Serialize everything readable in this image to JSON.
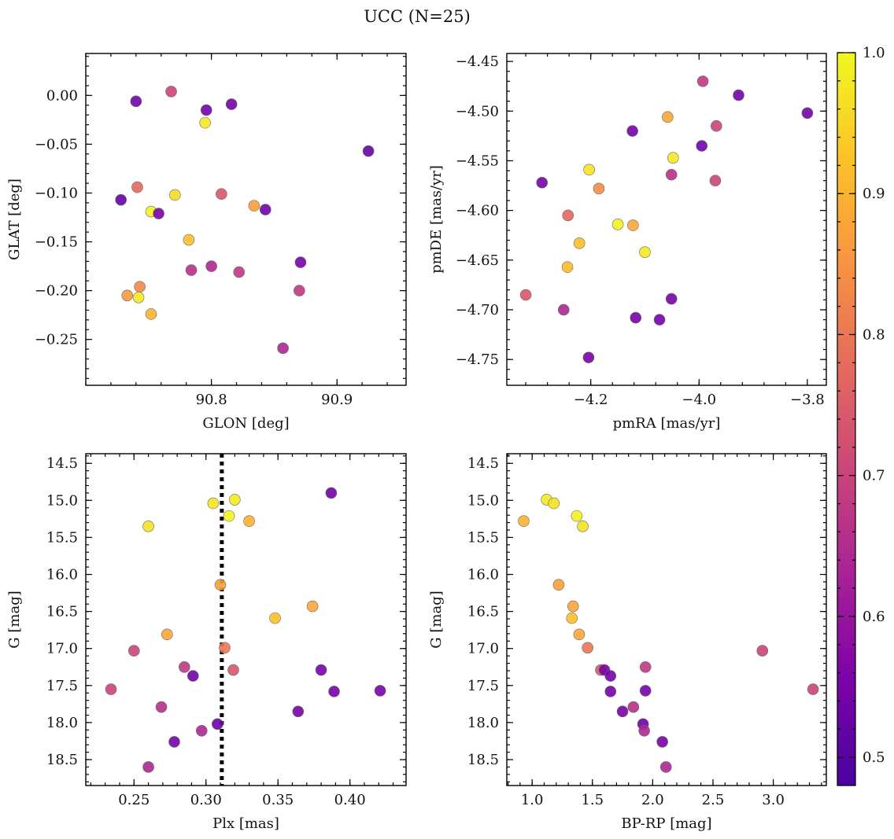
{
  "title": "UCC (N=25)",
  "colorbar": {
    "min": 0.48,
    "max": 1.0,
    "ticks": [
      0.5,
      0.6,
      0.7,
      0.8,
      0.9,
      1.0
    ],
    "tick_labels": [
      "0.5",
      "0.6",
      "0.7",
      "0.8",
      "0.9",
      "1.0"
    ],
    "colormap": "plasma"
  },
  "chart_data": [
    {
      "type": "scatter",
      "xlabel": "GLON [deg]",
      "ylabel": "GLAT [deg]",
      "xlim": [
        90.7,
        90.955
      ],
      "ylim": [
        -0.297,
        0.043
      ],
      "xticks": [
        90.8,
        90.9
      ],
      "xtick_labels": [
        "90.8",
        "90.9"
      ],
      "yticks": [
        0.0,
        -0.05,
        -0.1,
        -0.15,
        -0.2,
        -0.25
      ],
      "ytick_labels": [
        "0.00",
        "−0.05",
        "−0.10",
        "−0.15",
        "−0.20",
        "−0.25"
      ],
      "points": [
        {
          "x": 90.768,
          "y": 0.004,
          "c": 0.7
        },
        {
          "x": 90.74,
          "y": -0.006,
          "c": 0.54
        },
        {
          "x": 90.796,
          "y": -0.015,
          "c": 0.54
        },
        {
          "x": 90.816,
          "y": -0.009,
          "c": 0.54
        },
        {
          "x": 90.795,
          "y": -0.028,
          "c": 0.98
        },
        {
          "x": 90.925,
          "y": -0.057,
          "c": 0.52
        },
        {
          "x": 90.741,
          "y": -0.094,
          "c": 0.77
        },
        {
          "x": 90.771,
          "y": -0.102,
          "c": 0.96
        },
        {
          "x": 90.808,
          "y": -0.101,
          "c": 0.74
        },
        {
          "x": 90.728,
          "y": -0.107,
          "c": 0.52
        },
        {
          "x": 90.752,
          "y": -0.119,
          "c": 0.99
        },
        {
          "x": 90.758,
          "y": -0.121,
          "c": 0.55
        },
        {
          "x": 90.834,
          "y": -0.113,
          "c": 0.87
        },
        {
          "x": 90.843,
          "y": -0.117,
          "c": 0.54
        },
        {
          "x": 90.782,
          "y": -0.148,
          "c": 0.92
        },
        {
          "x": 90.871,
          "y": -0.171,
          "c": 0.55
        },
        {
          "x": 90.8,
          "y": -0.175,
          "c": 0.64
        },
        {
          "x": 90.784,
          "y": -0.179,
          "c": 0.66
        },
        {
          "x": 90.822,
          "y": -0.181,
          "c": 0.68
        },
        {
          "x": 90.743,
          "y": -0.196,
          "c": 0.83
        },
        {
          "x": 90.733,
          "y": -0.205,
          "c": 0.86
        },
        {
          "x": 90.742,
          "y": -0.207,
          "c": 0.98
        },
        {
          "x": 90.87,
          "y": -0.2,
          "c": 0.68
        },
        {
          "x": 90.752,
          "y": -0.224,
          "c": 0.9
        },
        {
          "x": 90.857,
          "y": -0.259,
          "c": 0.64
        }
      ]
    },
    {
      "type": "scatter",
      "xlabel": "pmRA [mas/yr]",
      "ylabel": "pmDE [mas/yr]",
      "xlim": [
        -4.355,
        -3.765
      ],
      "ylim": [
        -4.776,
        -4.442
      ],
      "xticks": [
        -4.2,
        -4.0,
        -3.8
      ],
      "xtick_labels": [
        "−4.2",
        "−4.0",
        "−3.8"
      ],
      "yticks": [
        -4.45,
        -4.5,
        -4.55,
        -4.6,
        -4.65,
        -4.7,
        -4.75
      ],
      "ytick_labels": [
        "−4.45",
        "−4.50",
        "−4.55",
        "−4.60",
        "−4.65",
        "−4.70",
        "−4.75"
      ],
      "points": [
        {
          "x": -3.993,
          "y": -4.47,
          "c": 0.68
        },
        {
          "x": -3.927,
          "y": -4.484,
          "c": 0.54
        },
        {
          "x": -3.8,
          "y": -4.502,
          "c": 0.55
        },
        {
          "x": -4.058,
          "y": -4.506,
          "c": 0.88
        },
        {
          "x": -3.968,
          "y": -4.515,
          "c": 0.7
        },
        {
          "x": -4.123,
          "y": -4.52,
          "c": 0.54
        },
        {
          "x": -3.995,
          "y": -4.535,
          "c": 0.54
        },
        {
          "x": -4.048,
          "y": -4.547,
          "c": 0.98
        },
        {
          "x": -4.203,
          "y": -4.559,
          "c": 0.97
        },
        {
          "x": -4.051,
          "y": -4.564,
          "c": 0.66
        },
        {
          "x": -3.97,
          "y": -4.57,
          "c": 0.7
        },
        {
          "x": -4.29,
          "y": -4.572,
          "c": 0.55
        },
        {
          "x": -4.185,
          "y": -4.578,
          "c": 0.84
        },
        {
          "x": -4.242,
          "y": -4.605,
          "c": 0.77
        },
        {
          "x": -4.15,
          "y": -4.614,
          "c": 0.99
        },
        {
          "x": -4.122,
          "y": -4.615,
          "c": 0.88
        },
        {
          "x": -4.221,
          "y": -4.633,
          "c": 0.92
        },
        {
          "x": -4.1,
          "y": -4.642,
          "c": 0.98
        },
        {
          "x": -4.243,
          "y": -4.657,
          "c": 0.91
        },
        {
          "x": -4.32,
          "y": -4.685,
          "c": 0.74
        },
        {
          "x": -4.051,
          "y": -4.689,
          "c": 0.55
        },
        {
          "x": -4.25,
          "y": -4.7,
          "c": 0.64
        },
        {
          "x": -4.117,
          "y": -4.708,
          "c": 0.55
        },
        {
          "x": -4.073,
          "y": -4.71,
          "c": 0.54
        },
        {
          "x": -4.204,
          "y": -4.748,
          "c": 0.55
        }
      ]
    },
    {
      "type": "scatter",
      "xlabel": "Plx [mas]",
      "ylabel": "G [mag]",
      "xlim": [
        0.2165,
        0.439
      ],
      "ylim": [
        18.85,
        14.37
      ],
      "y_inverted": true,
      "xticks": [
        0.25,
        0.3,
        0.35,
        0.4
      ],
      "xtick_labels": [
        "0.25",
        "0.30",
        "0.35",
        "0.40"
      ],
      "yticks": [
        14.5,
        15.0,
        15.5,
        16.0,
        16.5,
        17.0,
        17.5,
        18.0,
        18.5
      ],
      "ytick_labels": [
        "14.5",
        "15.0",
        "15.5",
        "16.0",
        "16.5",
        "17.0",
        "17.5",
        "18.0",
        "18.5"
      ],
      "reference_line": {
        "x": 0.311,
        "style": "dotted",
        "color": "#000000"
      },
      "points": [
        {
          "x": 0.387,
          "y": 14.9,
          "c": 0.54
        },
        {
          "x": 0.32,
          "y": 14.99,
          "c": 0.98
        },
        {
          "x": 0.305,
          "y": 15.04,
          "c": 0.97
        },
        {
          "x": 0.316,
          "y": 15.21,
          "c": 0.99
        },
        {
          "x": 0.33,
          "y": 15.28,
          "c": 0.9
        },
        {
          "x": 0.26,
          "y": 15.35,
          "c": 0.97
        },
        {
          "x": 0.31,
          "y": 16.14,
          "c": 0.87
        },
        {
          "x": 0.374,
          "y": 16.43,
          "c": 0.88
        },
        {
          "x": 0.348,
          "y": 16.59,
          "c": 0.92
        },
        {
          "x": 0.273,
          "y": 16.81,
          "c": 0.88
        },
        {
          "x": 0.313,
          "y": 16.99,
          "c": 0.8
        },
        {
          "x": 0.25,
          "y": 17.03,
          "c": 0.7
        },
        {
          "x": 0.285,
          "y": 17.25,
          "c": 0.68
        },
        {
          "x": 0.319,
          "y": 17.29,
          "c": 0.74
        },
        {
          "x": 0.38,
          "y": 17.29,
          "c": 0.55
        },
        {
          "x": 0.291,
          "y": 17.37,
          "c": 0.54
        },
        {
          "x": 0.234,
          "y": 17.55,
          "c": 0.7
        },
        {
          "x": 0.389,
          "y": 17.58,
          "c": 0.55
        },
        {
          "x": 0.421,
          "y": 17.57,
          "c": 0.55
        },
        {
          "x": 0.269,
          "y": 17.79,
          "c": 0.66
        },
        {
          "x": 0.364,
          "y": 17.85,
          "c": 0.55
        },
        {
          "x": 0.308,
          "y": 18.02,
          "c": 0.53
        },
        {
          "x": 0.297,
          "y": 18.11,
          "c": 0.64
        },
        {
          "x": 0.278,
          "y": 18.26,
          "c": 0.55
        },
        {
          "x": 0.26,
          "y": 18.6,
          "c": 0.64
        }
      ]
    },
    {
      "type": "scatter",
      "xlabel": "BP-RP [mag]",
      "ylabel": "G [mag]",
      "xlim": [
        0.79,
        3.44
      ],
      "ylim": [
        18.85,
        14.37
      ],
      "y_inverted": true,
      "xticks": [
        1.0,
        1.5,
        2.0,
        2.5,
        3.0
      ],
      "xtick_labels": [
        "1.0",
        "1.5",
        "2.0",
        "2.5",
        "3.0"
      ],
      "yticks": [
        14.5,
        15.0,
        15.5,
        16.0,
        16.5,
        17.0,
        17.5,
        18.0,
        18.5
      ],
      "ytick_labels": [
        "14.5",
        "15.0",
        "15.5",
        "16.0",
        "16.5",
        "17.0",
        "17.5",
        "18.0",
        "18.5"
      ],
      "points": [
        {
          "x": 1.12,
          "y": 14.99,
          "c": 0.98
        },
        {
          "x": 1.18,
          "y": 15.04,
          "c": 0.97
        },
        {
          "x": 1.37,
          "y": 15.21,
          "c": 0.99
        },
        {
          "x": 0.93,
          "y": 15.28,
          "c": 0.9
        },
        {
          "x": 1.42,
          "y": 15.35,
          "c": 0.97
        },
        {
          "x": 1.22,
          "y": 16.14,
          "c": 0.87
        },
        {
          "x": 1.34,
          "y": 16.43,
          "c": 0.88
        },
        {
          "x": 1.33,
          "y": 16.59,
          "c": 0.92
        },
        {
          "x": 1.39,
          "y": 16.81,
          "c": 0.88
        },
        {
          "x": 1.46,
          "y": 16.99,
          "c": 0.8
        },
        {
          "x": 2.91,
          "y": 17.03,
          "c": 0.7
        },
        {
          "x": 1.94,
          "y": 17.25,
          "c": 0.68
        },
        {
          "x": 1.57,
          "y": 17.29,
          "c": 0.74
        },
        {
          "x": 1.6,
          "y": 17.29,
          "c": 0.55
        },
        {
          "x": 1.65,
          "y": 17.37,
          "c": 0.54
        },
        {
          "x": 3.33,
          "y": 17.55,
          "c": 0.7
        },
        {
          "x": 1.65,
          "y": 17.58,
          "c": 0.55
        },
        {
          "x": 1.94,
          "y": 17.57,
          "c": 0.55
        },
        {
          "x": 1.84,
          "y": 17.79,
          "c": 0.66
        },
        {
          "x": 1.75,
          "y": 17.85,
          "c": 0.55
        },
        {
          "x": 1.92,
          "y": 18.02,
          "c": 0.53
        },
        {
          "x": 1.93,
          "y": 18.11,
          "c": 0.64
        },
        {
          "x": 2.08,
          "y": 18.26,
          "c": 0.55
        },
        {
          "x": 2.11,
          "y": 18.6,
          "c": 0.64
        }
      ]
    }
  ]
}
